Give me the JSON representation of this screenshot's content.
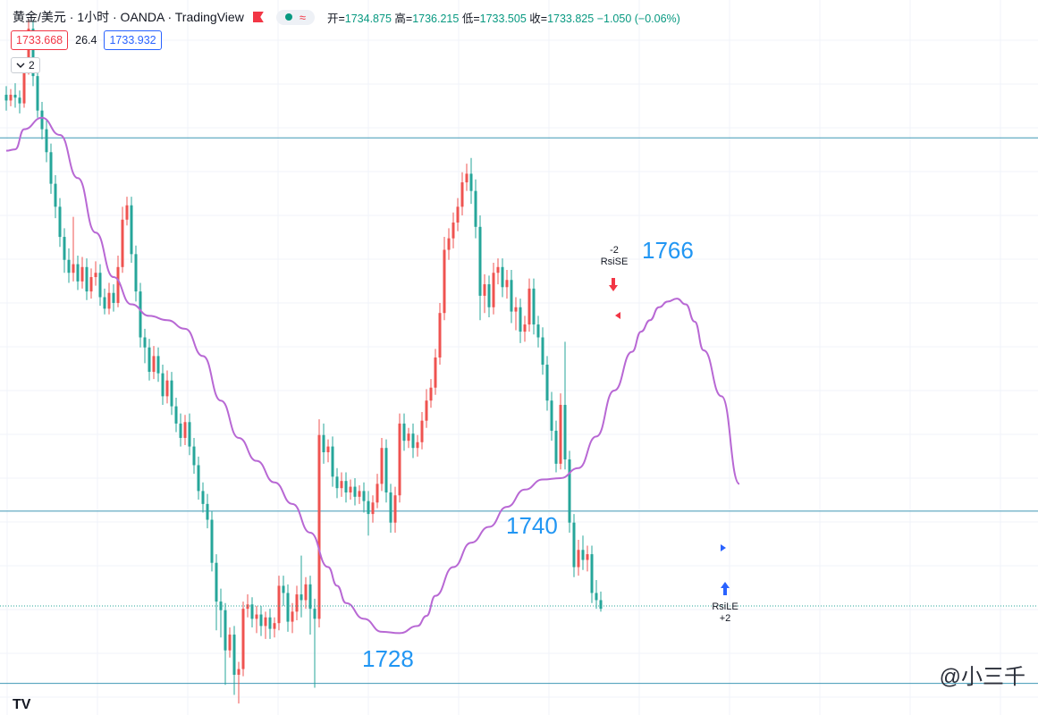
{
  "header": {
    "symbol": "黄金/美元 · 1小时 · OANDA · TradingView",
    "pill_icon": "≈",
    "open_label": "开=",
    "open": "1734.875",
    "high_label": "高=",
    "high": "1736.215",
    "low_label": "低=",
    "low": "1733.505",
    "close_label": "收=",
    "close": "1733.825",
    "change": "−1.050 (−0.06%)"
  },
  "quote": {
    "bid": "1733.668",
    "spread": "26.4",
    "ask": "1733.932"
  },
  "indicator_toggle": {
    "icon": "chevron-down-icon",
    "count": "2"
  },
  "levels": {
    "upper": "1766",
    "middle": "1740",
    "lower": "1728"
  },
  "signals": {
    "short": {
      "qty": "-2",
      "name": "RsiSE"
    },
    "long": {
      "name": "RsiLE",
      "qty": "+2"
    }
  },
  "watermark": "@小三千",
  "logo": "TV",
  "colors": {
    "up": "#ef5350",
    "down": "#26a69a",
    "ma": "#b868d4",
    "level": "#3f98b5",
    "label": "#2196f3"
  },
  "chart_data": {
    "type": "candlestick",
    "interval": "1小时",
    "overlays": [
      "moving-average"
    ],
    "horizontal_levels": [
      1766,
      1740,
      1728
    ],
    "y_range": [
      1725.8,
      1775.6
    ],
    "candles": [
      {
        "o": 1769.0,
        "h": 1769.6,
        "c": 1768.6,
        "l": 1767.9
      },
      {
        "o": 1768.6,
        "h": 1769.4,
        "c": 1769.0,
        "l": 1768.2
      },
      {
        "o": 1769.0,
        "h": 1769.8,
        "c": 1768.8,
        "l": 1768.1
      },
      {
        "o": 1768.8,
        "h": 1769.3,
        "c": 1768.4,
        "l": 1767.7
      },
      {
        "o": 1768.4,
        "h": 1771.6,
        "c": 1770.9,
        "l": 1768.1
      },
      {
        "o": 1770.9,
        "h": 1774.3,
        "c": 1773.6,
        "l": 1770.4
      },
      {
        "o": 1773.6,
        "h": 1774.2,
        "c": 1770.3,
        "l": 1769.6
      },
      {
        "o": 1770.3,
        "h": 1770.8,
        "c": 1767.9,
        "l": 1767.4
      },
      {
        "o": 1767.9,
        "h": 1768.5,
        "c": 1766.6,
        "l": 1765.9
      },
      {
        "o": 1766.6,
        "h": 1767.2,
        "c": 1765.0,
        "l": 1764.3
      },
      {
        "o": 1765.0,
        "h": 1765.6,
        "c": 1762.8,
        "l": 1762.1
      },
      {
        "o": 1762.8,
        "h": 1763.4,
        "c": 1761.2,
        "l": 1760.4
      },
      {
        "o": 1761.2,
        "h": 1761.8,
        "c": 1759.1,
        "l": 1758.4
      },
      {
        "o": 1759.1,
        "h": 1759.7,
        "c": 1757.5,
        "l": 1756.6
      },
      {
        "o": 1757.5,
        "h": 1758.3,
        "c": 1756.6,
        "l": 1755.9
      },
      {
        "o": 1756.6,
        "h": 1760.5,
        "c": 1757.2,
        "l": 1756.0
      },
      {
        "o": 1757.2,
        "h": 1757.8,
        "c": 1756.0,
        "l": 1755.4
      },
      {
        "o": 1756.0,
        "h": 1757.7,
        "c": 1757.0,
        "l": 1755.5
      },
      {
        "o": 1757.0,
        "h": 1757.6,
        "c": 1755.3,
        "l": 1754.7
      },
      {
        "o": 1755.3,
        "h": 1756.9,
        "c": 1756.3,
        "l": 1754.8
      },
      {
        "o": 1756.3,
        "h": 1757.4,
        "c": 1756.6,
        "l": 1755.7
      },
      {
        "o": 1756.6,
        "h": 1757.2,
        "c": 1754.9,
        "l": 1754.3
      },
      {
        "o": 1754.9,
        "h": 1755.5,
        "c": 1754.1,
        "l": 1753.7
      },
      {
        "o": 1754.1,
        "h": 1755.9,
        "c": 1755.2,
        "l": 1753.7
      },
      {
        "o": 1755.2,
        "h": 1755.8,
        "c": 1754.5,
        "l": 1753.9
      },
      {
        "o": 1754.5,
        "h": 1757.8,
        "c": 1757.0,
        "l": 1754.2
      },
      {
        "o": 1757.0,
        "h": 1761.2,
        "c": 1760.3,
        "l": 1756.6
      },
      {
        "o": 1760.3,
        "h": 1761.9,
        "c": 1761.3,
        "l": 1759.9
      },
      {
        "o": 1761.3,
        "h": 1761.9,
        "c": 1757.9,
        "l": 1757.3
      },
      {
        "o": 1757.9,
        "h": 1758.5,
        "c": 1755.3,
        "l": 1754.6
      },
      {
        "o": 1755.3,
        "h": 1755.9,
        "c": 1752.1,
        "l": 1751.4
      },
      {
        "o": 1752.1,
        "h": 1752.7,
        "c": 1751.4,
        "l": 1750.3
      },
      {
        "o": 1751.4,
        "h": 1752.0,
        "c": 1749.7,
        "l": 1749.1
      },
      {
        "o": 1749.7,
        "h": 1751.5,
        "c": 1750.8,
        "l": 1749.2
      },
      {
        "o": 1750.8,
        "h": 1751.4,
        "c": 1749.6,
        "l": 1749.0
      },
      {
        "o": 1749.6,
        "h": 1750.2,
        "c": 1748.0,
        "l": 1747.4
      },
      {
        "o": 1748.0,
        "h": 1749.8,
        "c": 1749.1,
        "l": 1747.5
      },
      {
        "o": 1749.1,
        "h": 1749.7,
        "c": 1747.3,
        "l": 1746.7
      },
      {
        "o": 1747.3,
        "h": 1747.9,
        "c": 1746.1,
        "l": 1745.5
      },
      {
        "o": 1746.1,
        "h": 1746.8,
        "c": 1745.1,
        "l": 1744.5
      },
      {
        "o": 1745.1,
        "h": 1746.7,
        "c": 1746.2,
        "l": 1744.6
      },
      {
        "o": 1746.2,
        "h": 1746.8,
        "c": 1744.5,
        "l": 1743.9
      },
      {
        "o": 1744.5,
        "h": 1745.1,
        "c": 1743.2,
        "l": 1742.6
      },
      {
        "o": 1743.2,
        "h": 1743.8,
        "c": 1741.4,
        "l": 1740.8
      },
      {
        "o": 1741.4,
        "h": 1742.0,
        "c": 1740.5,
        "l": 1739.9
      },
      {
        "o": 1740.5,
        "h": 1741.2,
        "c": 1739.4,
        "l": 1738.8
      },
      {
        "o": 1739.4,
        "h": 1740.0,
        "c": 1736.4,
        "l": 1735.8
      },
      {
        "o": 1736.4,
        "h": 1737.0,
        "c": 1733.7,
        "l": 1731.7
      },
      {
        "o": 1733.7,
        "h": 1734.6,
        "c": 1733.1,
        "l": 1731.2
      },
      {
        "o": 1733.1,
        "h": 1733.6,
        "c": 1730.3,
        "l": 1727.9
      },
      {
        "o": 1730.3,
        "h": 1731.9,
        "c": 1731.4,
        "l": 1729.8
      },
      {
        "o": 1731.4,
        "h": 1732.0,
        "c": 1728.6,
        "l": 1727.2
      },
      {
        "o": 1728.6,
        "h": 1729.5,
        "c": 1729.0,
        "l": 1726.6
      },
      {
        "o": 1729.0,
        "h": 1733.7,
        "c": 1733.2,
        "l": 1728.5
      },
      {
        "o": 1733.2,
        "h": 1734.2,
        "c": 1733.5,
        "l": 1732.6
      },
      {
        "o": 1733.5,
        "h": 1734.0,
        "c": 1732.5,
        "l": 1731.9
      },
      {
        "o": 1732.5,
        "h": 1733.4,
        "c": 1732.8,
        "l": 1731.5
      },
      {
        "o": 1732.8,
        "h": 1733.4,
        "c": 1732.0,
        "l": 1731.3
      },
      {
        "o": 1732.0,
        "h": 1733.0,
        "c": 1732.6,
        "l": 1731.1
      },
      {
        "o": 1732.6,
        "h": 1733.2,
        "c": 1731.8,
        "l": 1731.1
      },
      {
        "o": 1731.8,
        "h": 1732.6,
        "c": 1732.2,
        "l": 1731.2
      },
      {
        "o": 1732.2,
        "h": 1735.5,
        "c": 1734.8,
        "l": 1731.7
      },
      {
        "o": 1734.8,
        "h": 1735.5,
        "c": 1734.3,
        "l": 1733.4
      },
      {
        "o": 1734.3,
        "h": 1734.9,
        "c": 1732.3,
        "l": 1731.6
      },
      {
        "o": 1732.3,
        "h": 1733.6,
        "c": 1733.0,
        "l": 1731.5
      },
      {
        "o": 1733.0,
        "h": 1734.8,
        "c": 1734.2,
        "l": 1732.4
      },
      {
        "o": 1734.2,
        "h": 1736.9,
        "c": 1733.8,
        "l": 1732.6
      },
      {
        "o": 1733.8,
        "h": 1735.4,
        "c": 1734.9,
        "l": 1733.2
      },
      {
        "o": 1734.9,
        "h": 1735.5,
        "c": 1733.2,
        "l": 1731.4
      },
      {
        "o": 1733.2,
        "h": 1733.9,
        "c": 1732.5,
        "l": 1727.7
      },
      {
        "o": 1732.5,
        "h": 1746.4,
        "c": 1745.3,
        "l": 1731.9
      },
      {
        "o": 1745.3,
        "h": 1746.1,
        "c": 1744.1,
        "l": 1743.3
      },
      {
        "o": 1744.1,
        "h": 1745.0,
        "c": 1744.5,
        "l": 1743.4
      },
      {
        "o": 1744.5,
        "h": 1745.2,
        "c": 1742.4,
        "l": 1741.7
      },
      {
        "o": 1742.4,
        "h": 1743.0,
        "c": 1741.6,
        "l": 1740.9
      },
      {
        "o": 1741.6,
        "h": 1742.7,
        "c": 1742.1,
        "l": 1741.0
      },
      {
        "o": 1742.1,
        "h": 1742.7,
        "c": 1741.3,
        "l": 1740.6
      },
      {
        "o": 1741.3,
        "h": 1742.2,
        "c": 1741.7,
        "l": 1740.8
      },
      {
        "o": 1741.7,
        "h": 1742.3,
        "c": 1741.0,
        "l": 1740.4
      },
      {
        "o": 1741.0,
        "h": 1741.8,
        "c": 1741.4,
        "l": 1740.5
      },
      {
        "o": 1741.4,
        "h": 1742.0,
        "c": 1740.7,
        "l": 1739.9
      },
      {
        "o": 1740.7,
        "h": 1741.4,
        "c": 1739.8,
        "l": 1738.3
      },
      {
        "o": 1739.8,
        "h": 1741.1,
        "c": 1740.6,
        "l": 1739.2
      },
      {
        "o": 1740.6,
        "h": 1742.6,
        "c": 1741.9,
        "l": 1740.2
      },
      {
        "o": 1741.9,
        "h": 1745.1,
        "c": 1744.4,
        "l": 1741.4
      },
      {
        "o": 1744.4,
        "h": 1745.0,
        "c": 1741.3,
        "l": 1740.6
      },
      {
        "o": 1741.3,
        "h": 1741.9,
        "c": 1739.2,
        "l": 1738.5
      },
      {
        "o": 1739.2,
        "h": 1741.7,
        "c": 1741.1,
        "l": 1738.5
      },
      {
        "o": 1741.1,
        "h": 1746.8,
        "c": 1746.1,
        "l": 1740.6
      },
      {
        "o": 1746.1,
        "h": 1746.8,
        "c": 1744.9,
        "l": 1744.2
      },
      {
        "o": 1744.9,
        "h": 1745.8,
        "c": 1745.4,
        "l": 1744.4
      },
      {
        "o": 1745.4,
        "h": 1746.1,
        "c": 1744.4,
        "l": 1743.7
      },
      {
        "o": 1744.4,
        "h": 1745.3,
        "c": 1744.8,
        "l": 1743.8
      },
      {
        "o": 1744.8,
        "h": 1746.9,
        "c": 1746.3,
        "l": 1744.3
      },
      {
        "o": 1746.3,
        "h": 1748.5,
        "c": 1747.7,
        "l": 1745.8
      },
      {
        "o": 1747.7,
        "h": 1749.2,
        "c": 1748.6,
        "l": 1747.2
      },
      {
        "o": 1748.6,
        "h": 1751.3,
        "c": 1750.7,
        "l": 1748.1
      },
      {
        "o": 1750.7,
        "h": 1754.5,
        "c": 1753.8,
        "l": 1750.2
      },
      {
        "o": 1753.8,
        "h": 1759.1,
        "c": 1758.2,
        "l": 1753.3
      },
      {
        "o": 1758.2,
        "h": 1759.7,
        "c": 1759.0,
        "l": 1757.5
      },
      {
        "o": 1759.0,
        "h": 1760.8,
        "c": 1760.1,
        "l": 1758.3
      },
      {
        "o": 1760.1,
        "h": 1761.8,
        "c": 1761.2,
        "l": 1759.5
      },
      {
        "o": 1761.2,
        "h": 1763.6,
        "c": 1762.9,
        "l": 1760.6
      },
      {
        "o": 1762.9,
        "h": 1764.2,
        "c": 1763.5,
        "l": 1762.3
      },
      {
        "o": 1763.5,
        "h": 1764.6,
        "c": 1762.3,
        "l": 1761.4
      },
      {
        "o": 1762.3,
        "h": 1763.1,
        "c": 1759.8,
        "l": 1759.0
      },
      {
        "o": 1759.8,
        "h": 1760.6,
        "c": 1755.0,
        "l": 1753.3
      },
      {
        "o": 1755.0,
        "h": 1756.5,
        "c": 1755.8,
        "l": 1753.8
      },
      {
        "o": 1755.8,
        "h": 1756.4,
        "c": 1754.2,
        "l": 1753.5
      },
      {
        "o": 1754.2,
        "h": 1757.3,
        "c": 1756.6,
        "l": 1753.7
      },
      {
        "o": 1756.6,
        "h": 1757.6,
        "c": 1757.0,
        "l": 1755.8
      },
      {
        "o": 1757.0,
        "h": 1757.6,
        "c": 1755.6,
        "l": 1754.9
      },
      {
        "o": 1755.6,
        "h": 1756.8,
        "c": 1756.1,
        "l": 1754.8
      },
      {
        "o": 1756.1,
        "h": 1756.8,
        "c": 1753.9,
        "l": 1753.1
      },
      {
        "o": 1753.9,
        "h": 1754.9,
        "c": 1754.2,
        "l": 1752.6
      },
      {
        "o": 1754.2,
        "h": 1754.8,
        "c": 1752.5,
        "l": 1751.7
      },
      {
        "o": 1752.5,
        "h": 1753.6,
        "c": 1753.0,
        "l": 1751.8
      },
      {
        "o": 1753.0,
        "h": 1756.2,
        "c": 1755.5,
        "l": 1752.5
      },
      {
        "o": 1755.5,
        "h": 1756.2,
        "c": 1753.0,
        "l": 1752.3
      },
      {
        "o": 1753.0,
        "h": 1753.6,
        "c": 1752.1,
        "l": 1751.4
      },
      {
        "o": 1752.1,
        "h": 1752.8,
        "c": 1750.2,
        "l": 1749.5
      },
      {
        "o": 1750.2,
        "h": 1750.8,
        "c": 1747.7,
        "l": 1747.0
      },
      {
        "o": 1747.7,
        "h": 1748.3,
        "c": 1745.6,
        "l": 1744.9
      },
      {
        "o": 1745.6,
        "h": 1746.3,
        "c": 1743.3,
        "l": 1742.7
      },
      {
        "o": 1743.3,
        "h": 1748.2,
        "c": 1747.4,
        "l": 1742.9
      },
      {
        "o": 1747.4,
        "h": 1751.8,
        "c": 1743.6,
        "l": 1742.9
      },
      {
        "o": 1743.6,
        "h": 1744.2,
        "c": 1739.2,
        "l": 1738.5
      },
      {
        "o": 1739.2,
        "h": 1739.8,
        "c": 1736.1,
        "l": 1735.4
      },
      {
        "o": 1736.1,
        "h": 1738.0,
        "c": 1737.3,
        "l": 1735.5
      },
      {
        "o": 1737.3,
        "h": 1738.3,
        "c": 1736.6,
        "l": 1735.9
      },
      {
        "o": 1736.6,
        "h": 1737.6,
        "c": 1737.0,
        "l": 1735.8
      },
      {
        "o": 1737.0,
        "h": 1737.6,
        "c": 1734.3,
        "l": 1733.6
      },
      {
        "o": 1734.3,
        "h": 1735.2,
        "c": 1733.8,
        "l": 1733.2
      },
      {
        "o": 1733.8,
        "h": 1734.4,
        "c": 1733.2,
        "l": 1733.0
      }
    ],
    "moving_average": [
      [
        0,
        1765.1
      ],
      [
        2,
        1765.2
      ],
      [
        4,
        1766.6
      ],
      [
        8,
        1767.4
      ],
      [
        12,
        1766.2
      ],
      [
        16,
        1763.2
      ],
      [
        20,
        1759.4
      ],
      [
        24,
        1756.3
      ],
      [
        28,
        1754.4
      ],
      [
        32,
        1753.6
      ],
      [
        36,
        1753.3
      ],
      [
        40,
        1752.7
      ],
      [
        44,
        1750.8
      ],
      [
        48,
        1747.7
      ],
      [
        52,
        1745.1
      ],
      [
        56,
        1743.5
      ],
      [
        60,
        1742.0
      ],
      [
        64,
        1740.5
      ],
      [
        68,
        1738.5
      ],
      [
        72,
        1736.1
      ],
      [
        74,
        1734.8
      ],
      [
        76,
        1733.6
      ],
      [
        80,
        1732.5
      ],
      [
        84,
        1731.6
      ],
      [
        88,
        1731.5
      ],
      [
        92,
        1732.0
      ],
      [
        94,
        1732.7
      ],
      [
        96,
        1734.1
      ],
      [
        100,
        1736.1
      ],
      [
        104,
        1737.8
      ],
      [
        108,
        1738.9
      ],
      [
        112,
        1740.3
      ],
      [
        116,
        1741.5
      ],
      [
        120,
        1742.2
      ],
      [
        124,
        1742.3
      ],
      [
        128,
        1743.0
      ],
      [
        132,
        1745.2
      ],
      [
        136,
        1748.4
      ],
      [
        140,
        1751.1
      ],
      [
        142,
        1752.5
      ],
      [
        144,
        1753.3
      ],
      [
        146,
        1754.2
      ],
      [
        148,
        1754.6
      ],
      [
        150,
        1754.8
      ],
      [
        152,
        1754.4
      ],
      [
        154,
        1753.2
      ],
      [
        156,
        1751.2
      ],
      [
        160,
        1748.0
      ],
      [
        164,
        1741.9
      ]
    ],
    "moving_average_x_offset": 0
  }
}
